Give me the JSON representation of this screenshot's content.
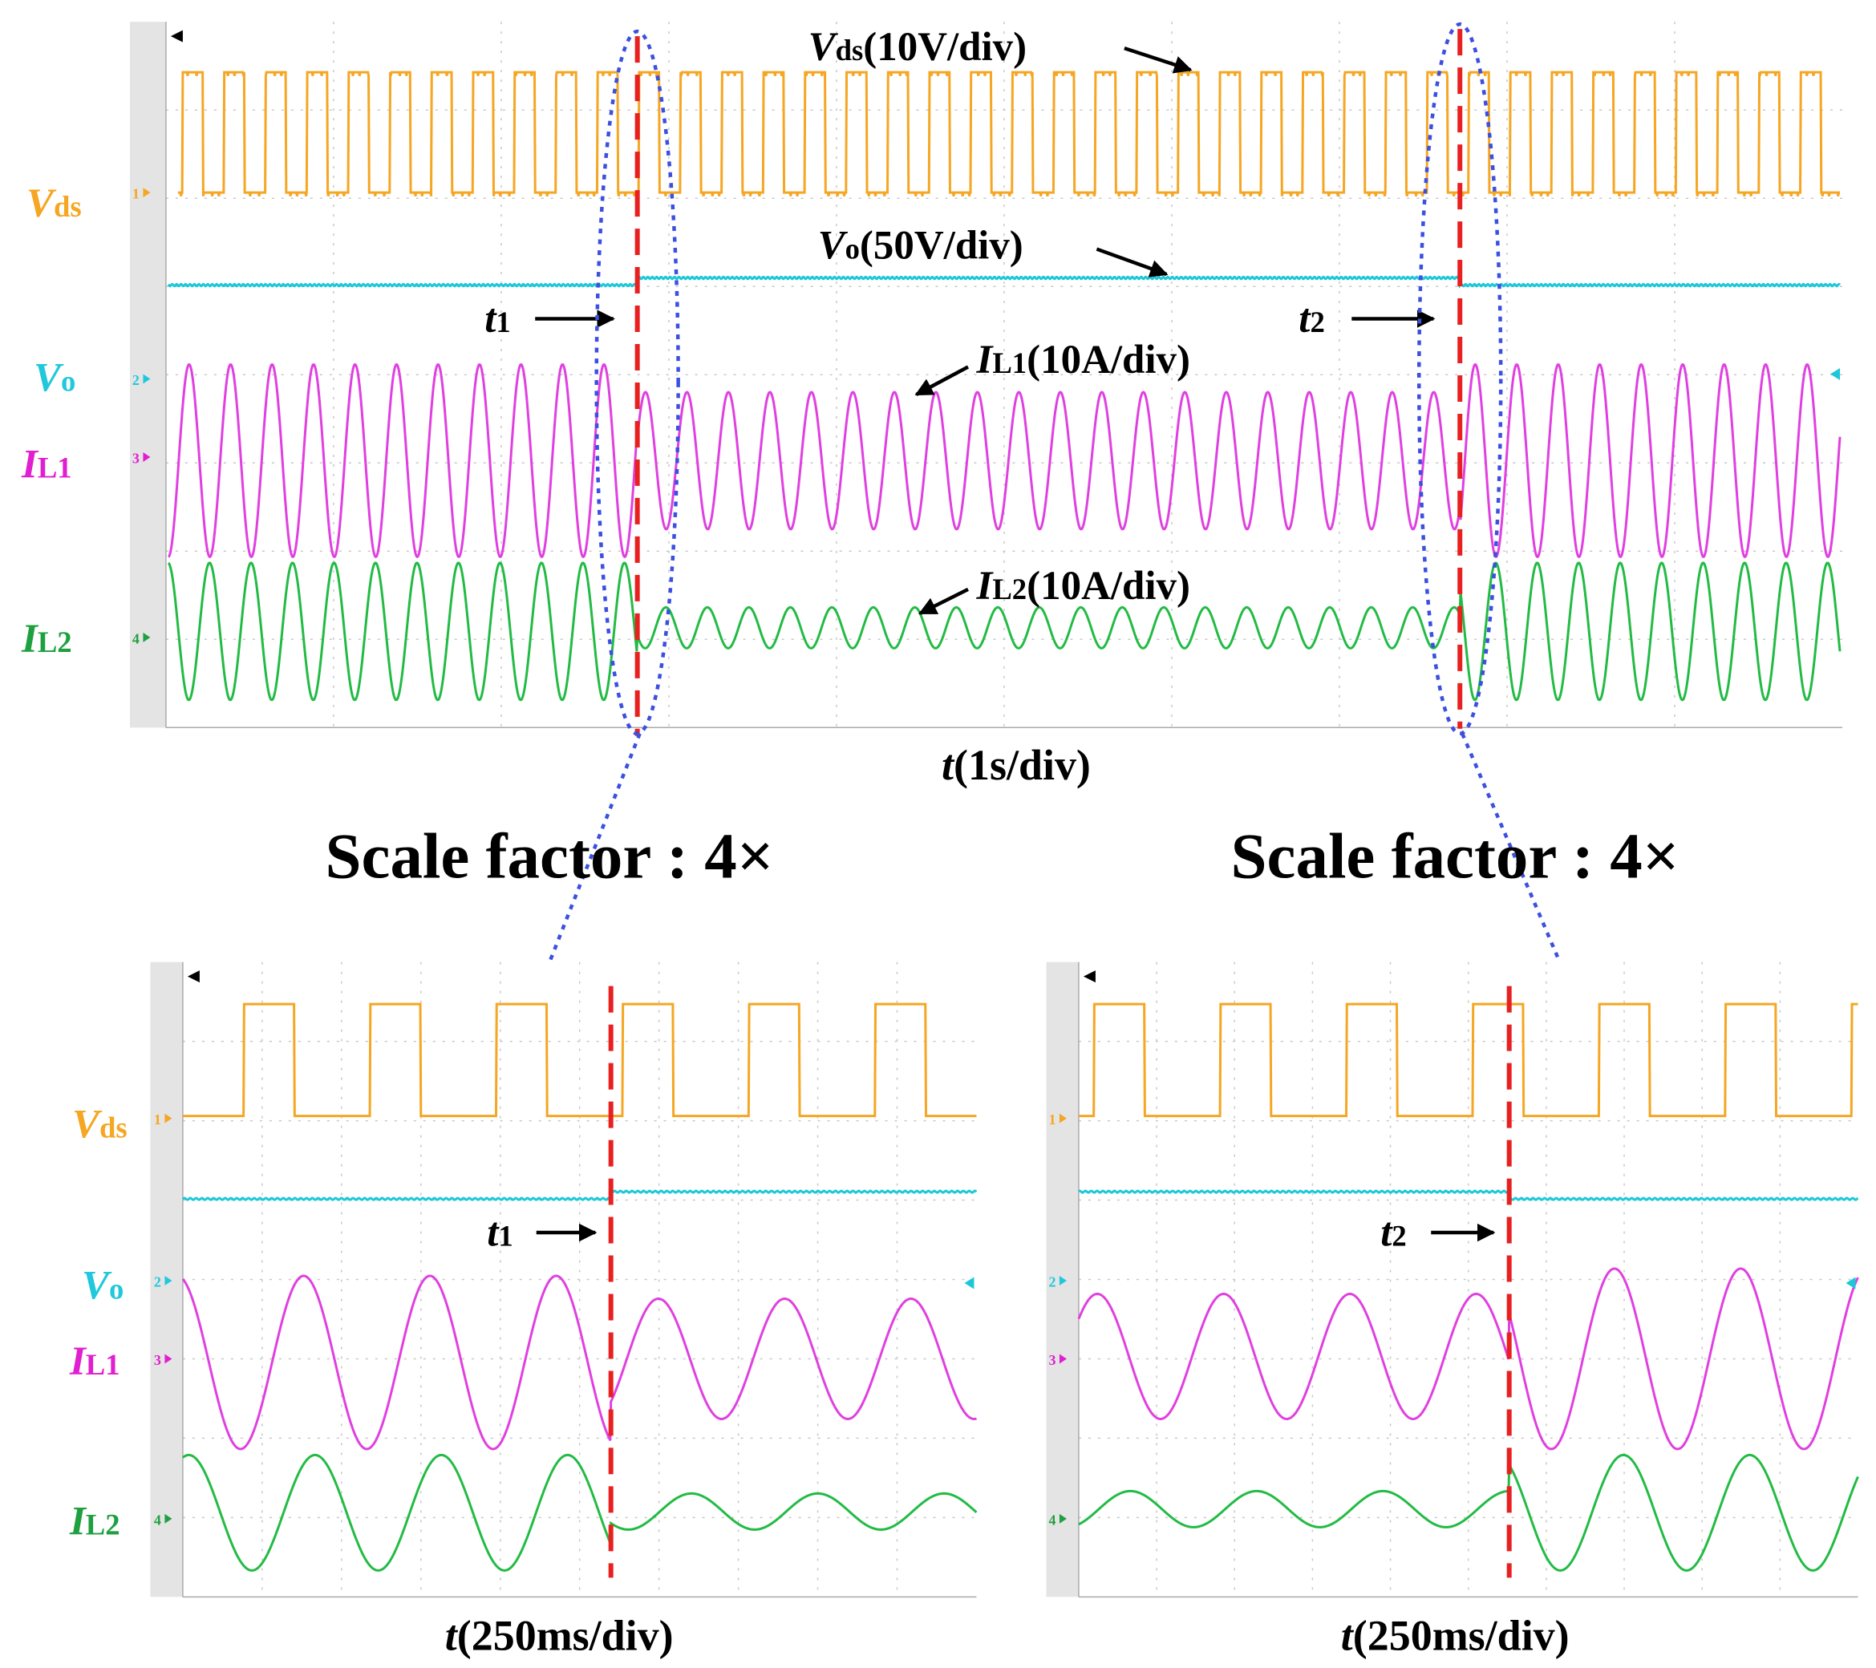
{
  "top_panel": {
    "channels": [
      {
        "symbol": "V",
        "sub": "ds"
      },
      {
        "symbol": "V",
        "sub": "o"
      },
      {
        "symbol": "I",
        "sub": "L1"
      },
      {
        "symbol": "I",
        "sub": "L2"
      }
    ],
    "channel_numbers": [
      "1",
      "2",
      "3",
      "4"
    ],
    "annotations": [
      {
        "symbol": "V",
        "sub": "ds",
        "text": "(10V/div)"
      },
      {
        "symbol": "V",
        "sub": "o",
        "text": "(50V/div)"
      },
      {
        "symbol": "I",
        "sub": "L1",
        "text": "(10A/div)"
      },
      {
        "symbol": "I",
        "sub": "L2",
        "text": "(10A/div)"
      }
    ],
    "events": [
      {
        "symbol": "t",
        "sub": "1"
      },
      {
        "symbol": "t",
        "sub": "2"
      }
    ],
    "time_axis": {
      "symbol": "t",
      "text": "(1s/div)"
    }
  },
  "zoom_labels": [
    "Scale factor : 4×",
    "Scale factor : 4×"
  ],
  "bottom_left": {
    "channels": [
      {
        "symbol": "V",
        "sub": "ds"
      },
      {
        "symbol": "V",
        "sub": "o"
      },
      {
        "symbol": "I",
        "sub": "L1"
      },
      {
        "symbol": "I",
        "sub": "L2"
      }
    ],
    "channel_numbers": [
      "1",
      "2",
      "3",
      "4"
    ],
    "event": {
      "symbol": "t",
      "sub": "1"
    },
    "time_axis": {
      "symbol": "t",
      "text": "(250ms/div)"
    }
  },
  "bottom_right": {
    "channel_numbers": [
      "1",
      "2",
      "3",
      "4"
    ],
    "event": {
      "symbol": "t",
      "sub": "2"
    },
    "time_axis": {
      "symbol": "t",
      "text": "(250ms/div)"
    }
  }
}
